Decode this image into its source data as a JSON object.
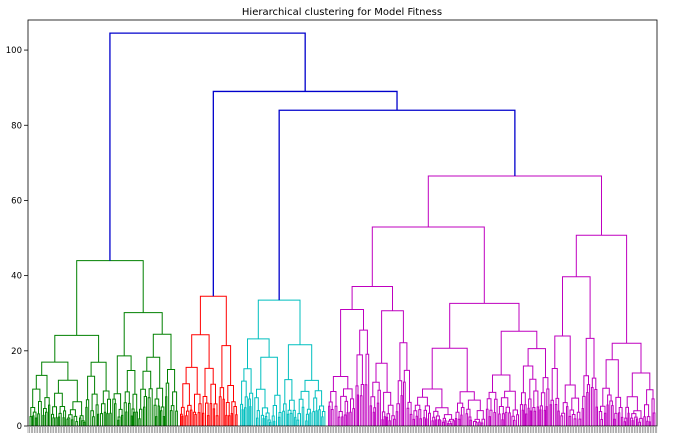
{
  "chart_data": {
    "type": "dendrogram",
    "title": "Hierarchical clustering for Model Fitness",
    "xlabel": "",
    "ylabel": "",
    "ylim": [
      0,
      108
    ],
    "yticks": [
      0,
      20,
      40,
      60,
      80,
      100
    ],
    "grid": false,
    "legend": "none",
    "clusters": [
      {
        "color": "#008000",
        "leaf_span": [
          0.0,
          0.24
        ],
        "top_height": 44
      },
      {
        "color": "#ff0000",
        "leaf_span": [
          0.24,
          0.335
        ],
        "top_height": 34.5
      },
      {
        "color": "#00bfbf",
        "leaf_span": [
          0.335,
          0.475
        ],
        "top_height": 33.5
      },
      {
        "color": "#bf00bf",
        "leaf_span": [
          0.475,
          1.0
        ],
        "top_height": 66.5
      }
    ],
    "top_links": [
      {
        "height": 104.5,
        "color": "#0000cc"
      },
      {
        "height": 89,
        "color": "#0000cc"
      },
      {
        "height": 84,
        "color": "#0000cc"
      }
    ],
    "colors": {
      "link_above_threshold": "#0000cc"
    }
  }
}
